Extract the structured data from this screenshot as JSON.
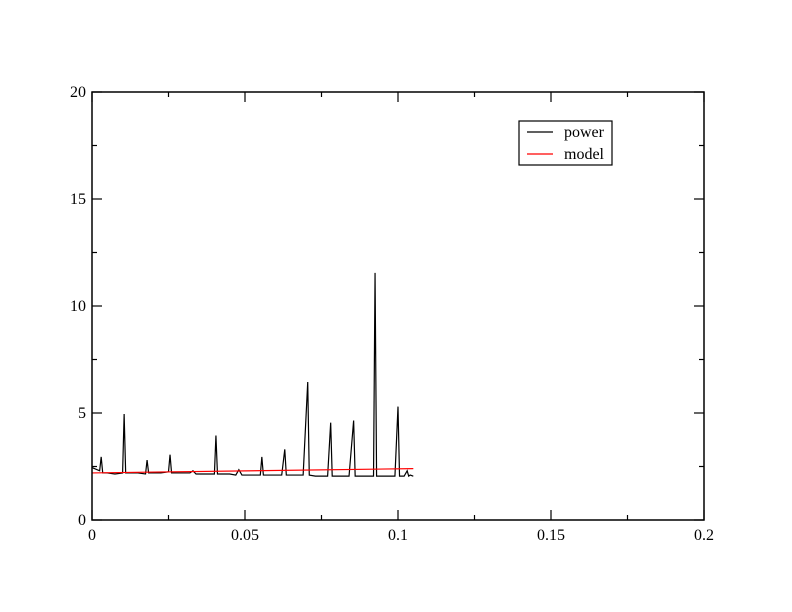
{
  "chart_data": {
    "type": "line",
    "title": "",
    "xlabel": "",
    "ylabel": "",
    "xlim": [
      0,
      0.2
    ],
    "ylim": [
      0,
      20
    ],
    "x_ticks": [
      0,
      0.05,
      0.1,
      0.15,
      0.2
    ],
    "x_tick_labels": [
      "0",
      "0.05",
      "0.1",
      "0.15",
      "0.2"
    ],
    "y_ticks": [
      0,
      5,
      10,
      15,
      20
    ],
    "y_tick_labels": [
      "0",
      "5",
      "10",
      "15",
      "20"
    ],
    "grid": false,
    "legend_position": "top-right",
    "series": [
      {
        "name": "power",
        "color": "#000000",
        "x": [
          0.0,
          0.0025,
          0.003,
          0.0035,
          0.005,
          0.0075,
          0.01,
          0.0105,
          0.011,
          0.0125,
          0.015,
          0.0175,
          0.018,
          0.0185,
          0.02,
          0.0225,
          0.025,
          0.0255,
          0.026,
          0.028,
          0.03,
          0.032,
          0.033,
          0.034,
          0.036,
          0.038,
          0.04,
          0.0405,
          0.041,
          0.043,
          0.045,
          0.047,
          0.048,
          0.049,
          0.051,
          0.053,
          0.055,
          0.0555,
          0.056,
          0.058,
          0.06,
          0.062,
          0.063,
          0.0635,
          0.065,
          0.067,
          0.069,
          0.0705,
          0.071,
          0.073,
          0.075,
          0.077,
          0.078,
          0.0785,
          0.08,
          0.082,
          0.084,
          0.0855,
          0.086,
          0.088,
          0.09,
          0.092,
          0.0925,
          0.093,
          0.095,
          0.097,
          0.099,
          0.1,
          0.1005,
          0.102,
          0.103,
          0.1035,
          0.104,
          0.105
        ],
        "y": [
          2.45,
          2.3,
          2.95,
          2.2,
          2.2,
          2.15,
          2.2,
          4.95,
          2.2,
          2.2,
          2.2,
          2.15,
          2.8,
          2.2,
          2.2,
          2.2,
          2.25,
          3.05,
          2.2,
          2.2,
          2.2,
          2.2,
          2.3,
          2.15,
          2.15,
          2.15,
          2.15,
          3.95,
          2.15,
          2.15,
          2.15,
          2.1,
          2.35,
          2.1,
          2.1,
          2.1,
          2.1,
          2.95,
          2.1,
          2.1,
          2.1,
          2.1,
          3.3,
          2.1,
          2.1,
          2.1,
          2.1,
          6.45,
          2.1,
          2.05,
          2.05,
          2.05,
          4.55,
          2.05,
          2.05,
          2.05,
          2.05,
          4.65,
          2.05,
          2.05,
          2.05,
          2.05,
          11.55,
          2.05,
          2.05,
          2.05,
          2.05,
          5.3,
          2.05,
          2.05,
          2.3,
          2.05,
          2.1,
          2.05
        ]
      },
      {
        "name": "model",
        "color": "#ff0000",
        "x": [
          0.0,
          0.105
        ],
        "y": [
          2.2,
          2.4
        ]
      }
    ]
  }
}
